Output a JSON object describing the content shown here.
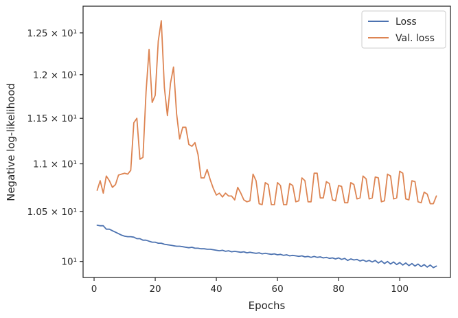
{
  "chart_data": {
    "type": "line",
    "xlabel": "Epochs",
    "ylabel": "Negative log-likelihood",
    "xlim": [
      -3.6,
      116.6
    ],
    "ylim": [
      9.845,
      12.83
    ],
    "y_scale": "log",
    "grid": false,
    "legend_position": "top-right",
    "x_ticks": [
      0,
      20,
      40,
      60,
      80,
      100
    ],
    "x_tick_labels": [
      "0",
      "20",
      "40",
      "60",
      "80",
      "100"
    ],
    "y_ticks": [
      10.0,
      10.5,
      11.0,
      11.5,
      12.0,
      12.5
    ],
    "y_tick_labels": [
      "10¹",
      "1.05 × 10¹",
      "1.1 × 10¹",
      "1.15 × 10¹",
      "1.2 × 10¹",
      "1.25 × 10¹"
    ],
    "series": [
      {
        "name": "Loss",
        "color": "#4c72b0",
        "x": [
          1,
          2,
          3,
          4,
          5,
          6,
          7,
          8,
          9,
          10,
          11,
          12,
          13,
          14,
          15,
          16,
          17,
          18,
          19,
          20,
          21,
          22,
          23,
          24,
          25,
          26,
          27,
          28,
          29,
          30,
          31,
          32,
          33,
          34,
          35,
          36,
          37,
          38,
          39,
          40,
          41,
          42,
          43,
          44,
          45,
          46,
          47,
          48,
          49,
          50,
          51,
          52,
          53,
          54,
          55,
          56,
          57,
          58,
          59,
          60,
          61,
          62,
          63,
          64,
          65,
          66,
          67,
          68,
          69,
          70,
          71,
          72,
          73,
          74,
          75,
          76,
          77,
          78,
          79,
          80,
          81,
          82,
          83,
          84,
          85,
          86,
          87,
          88,
          89,
          90,
          91,
          92,
          93,
          94,
          95,
          96,
          97,
          98,
          99,
          100,
          101,
          102,
          103,
          104,
          105,
          106,
          107,
          108,
          109,
          110,
          111,
          112
        ],
        "values": [
          10.36,
          10.355,
          10.355,
          10.32,
          10.32,
          10.305,
          10.29,
          10.275,
          10.26,
          10.25,
          10.245,
          10.245,
          10.24,
          10.225,
          10.225,
          10.21,
          10.21,
          10.2,
          10.19,
          10.19,
          10.18,
          10.18,
          10.17,
          10.165,
          10.16,
          10.155,
          10.15,
          10.15,
          10.145,
          10.14,
          10.135,
          10.14,
          10.13,
          10.13,
          10.125,
          10.125,
          10.12,
          10.12,
          10.115,
          10.11,
          10.105,
          10.11,
          10.1,
          10.105,
          10.095,
          10.1,
          10.095,
          10.09,
          10.095,
          10.085,
          10.09,
          10.085,
          10.08,
          10.085,
          10.075,
          10.08,
          10.075,
          10.07,
          10.075,
          10.065,
          10.07,
          10.06,
          10.065,
          10.055,
          10.06,
          10.055,
          10.05,
          10.055,
          10.045,
          10.05,
          10.04,
          10.05,
          10.04,
          10.045,
          10.035,
          10.04,
          10.03,
          10.035,
          10.025,
          10.035,
          10.02,
          10.03,
          10.01,
          10.025,
          10.015,
          10.02,
          10.005,
          10.015,
          10.0,
          10.01,
          9.995,
          10.01,
          9.985,
          10.005,
          9.98,
          10.0,
          9.975,
          9.995,
          9.97,
          9.99,
          9.965,
          9.985,
          9.96,
          9.98,
          9.955,
          9.975,
          9.95,
          9.97,
          9.945,
          9.965,
          9.94,
          9.955
        ]
      },
      {
        "name": "Val. loss",
        "color": "#dd8452",
        "x": [
          1,
          2,
          3,
          4,
          5,
          6,
          7,
          8,
          9,
          10,
          11,
          12,
          13,
          14,
          15,
          16,
          17,
          18,
          19,
          20,
          21,
          22,
          23,
          24,
          25,
          26,
          27,
          28,
          29,
          30,
          31,
          32,
          33,
          34,
          35,
          36,
          37,
          38,
          39,
          40,
          41,
          42,
          43,
          44,
          45,
          46,
          47,
          48,
          49,
          50,
          51,
          52,
          53,
          54,
          55,
          56,
          57,
          58,
          59,
          60,
          61,
          62,
          63,
          64,
          65,
          66,
          67,
          68,
          69,
          70,
          71,
          72,
          73,
          74,
          75,
          76,
          77,
          78,
          79,
          80,
          81,
          82,
          83,
          84,
          85,
          86,
          87,
          88,
          89,
          90,
          91,
          92,
          93,
          94,
          95,
          96,
          97,
          98,
          99,
          100,
          101,
          102,
          103,
          104,
          105,
          106,
          107,
          108,
          109,
          110,
          111,
          112
        ],
        "values": [
          10.72,
          10.82,
          10.69,
          10.87,
          10.82,
          10.75,
          10.78,
          10.88,
          10.89,
          10.9,
          10.89,
          10.93,
          11.45,
          11.5,
          11.05,
          11.07,
          11.8,
          12.3,
          11.68,
          11.76,
          12.4,
          12.65,
          11.85,
          11.53,
          11.9,
          12.09,
          11.55,
          11.27,
          11.4,
          11.4,
          11.21,
          11.19,
          11.23,
          11.1,
          10.85,
          10.85,
          10.94,
          10.83,
          10.74,
          10.67,
          10.69,
          10.65,
          10.69,
          10.66,
          10.66,
          10.62,
          10.75,
          10.69,
          10.62,
          10.6,
          10.61,
          10.89,
          10.82,
          10.58,
          10.57,
          10.8,
          10.78,
          10.57,
          10.57,
          10.8,
          10.77,
          10.57,
          10.57,
          10.79,
          10.77,
          10.6,
          10.61,
          10.85,
          10.82,
          10.6,
          10.6,
          10.9,
          10.9,
          10.64,
          10.64,
          10.81,
          10.79,
          10.62,
          10.61,
          10.77,
          10.76,
          10.59,
          10.59,
          10.8,
          10.78,
          10.63,
          10.64,
          10.87,
          10.84,
          10.63,
          10.64,
          10.86,
          10.85,
          10.6,
          10.61,
          10.89,
          10.87,
          10.63,
          10.64,
          10.92,
          10.9,
          10.63,
          10.62,
          10.82,
          10.81,
          10.6,
          10.59,
          10.7,
          10.68,
          10.58,
          10.58,
          10.66
        ]
      }
    ]
  }
}
